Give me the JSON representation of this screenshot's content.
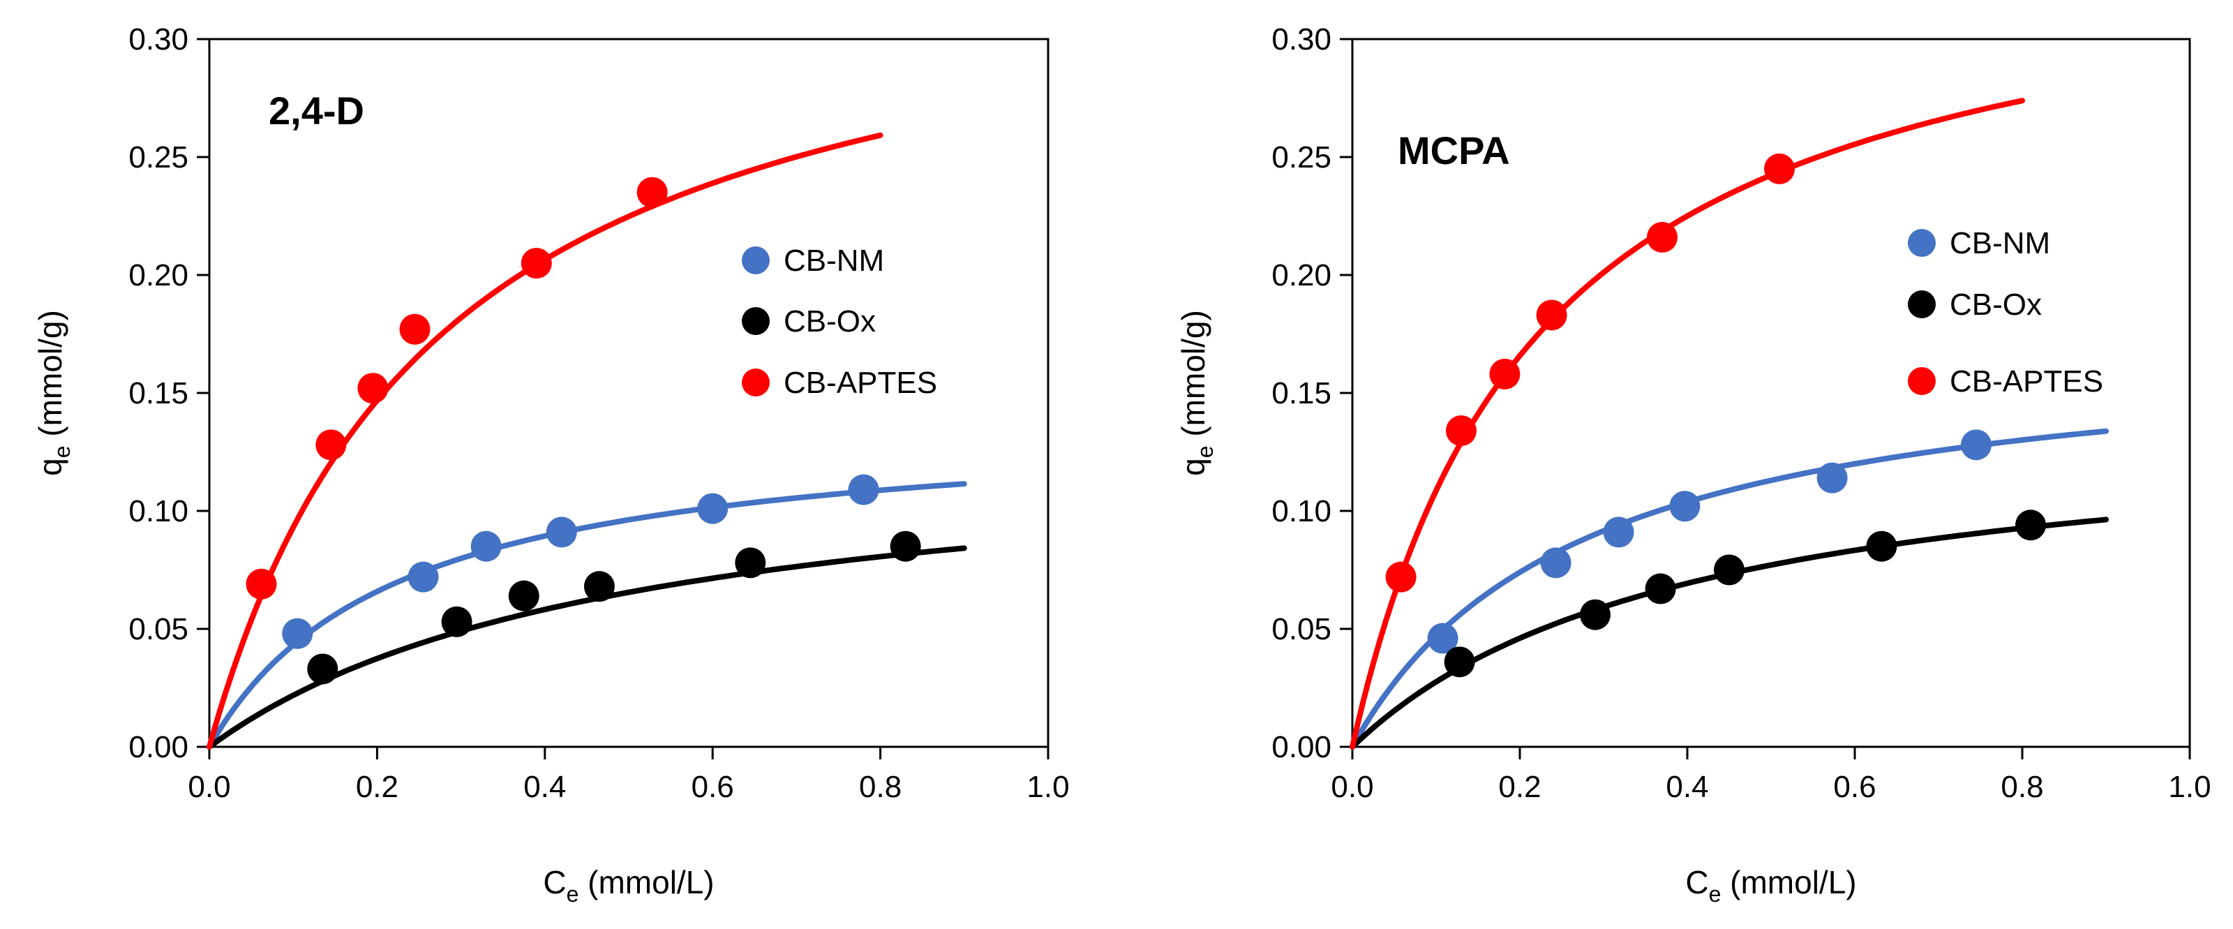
{
  "chart_data": [
    {
      "type": "scatter",
      "title": "2,4-D",
      "xlabel": "C",
      "xlabel_sub": "e",
      "xlabel_unit": " (mmol/L)",
      "ylabel": "q",
      "ylabel_sub": "e",
      "ylabel_unit": " (mmol/g)",
      "xlim": [
        0,
        1.0
      ],
      "ylim": [
        0,
        0.3
      ],
      "xticks": [
        "0.0",
        "0.2",
        "0.4",
        "0.6",
        "0.8",
        "1.0"
      ],
      "yticks": [
        "0.00",
        "0.05",
        "0.10",
        "0.15",
        "0.20",
        "0.25",
        "0.30"
      ],
      "legend_position": "right",
      "series": [
        {
          "name": "CB-NM",
          "color": "#4472C4",
          "x": [
            0.105,
            0.255,
            0.33,
            0.42,
            0.6,
            0.78
          ],
          "y": [
            0.048,
            0.072,
            0.085,
            0.091,
            0.101,
            0.109
          ],
          "fit": {
            "model": "langmuir",
            "qmax": 0.139,
            "K": 4.5,
            "xmax": 0.9
          }
        },
        {
          "name": "CB-Ox",
          "color": "#000000",
          "x": [
            0.135,
            0.295,
            0.375,
            0.465,
            0.645,
            0.83
          ],
          "y": [
            0.033,
            0.053,
            0.064,
            0.068,
            0.078,
            0.085
          ],
          "fit": {
            "model": "langmuir",
            "qmax": 0.131,
            "K": 2.0,
            "xmax": 0.9
          }
        },
        {
          "name": "CB-APTES",
          "color": "#FF0000",
          "x": [
            0.062,
            0.145,
            0.195,
            0.245,
            0.39,
            0.528
          ],
          "y": [
            0.069,
            0.128,
            0.152,
            0.177,
            0.205,
            0.235
          ],
          "fit": {
            "model": "langmuir",
            "qmax": 0.348,
            "K": 3.65,
            "xmax": 0.8
          }
        }
      ]
    },
    {
      "type": "scatter",
      "title": "MCPA",
      "xlabel": "C",
      "xlabel_sub": "e",
      "xlabel_unit": " (mmol/L)",
      "ylabel": "q",
      "ylabel_sub": "e",
      "ylabel_unit": " (mmol/g)",
      "xlim": [
        0,
        1.0
      ],
      "ylim": [
        0,
        0.3
      ],
      "xticks": [
        "0.0",
        "0.2",
        "0.4",
        "0.6",
        "0.8",
        "1.0"
      ],
      "yticks": [
        "0.00",
        "0.05",
        "0.10",
        "0.15",
        "0.20",
        "0.25",
        "0.30"
      ],
      "legend_position": "right",
      "series": [
        {
          "name": "CB-NM",
          "color": "#4472C4",
          "x": [
            0.108,
            0.243,
            0.318,
            0.397,
            0.573,
            0.745
          ],
          "y": [
            0.046,
            0.078,
            0.091,
            0.102,
            0.114,
            0.128
          ],
          "fit": {
            "model": "langmuir",
            "qmax": 0.174,
            "K": 3.7,
            "xmax": 0.9
          }
        },
        {
          "name": "CB-Ox",
          "color": "#000000",
          "x": [
            0.128,
            0.29,
            0.368,
            0.45,
            0.632,
            0.81
          ],
          "y": [
            0.036,
            0.056,
            0.067,
            0.075,
            0.085,
            0.094
          ],
          "fit": {
            "model": "langmuir",
            "qmax": 0.14,
            "K": 2.45,
            "xmax": 0.9
          }
        },
        {
          "name": "CB-APTES",
          "color": "#FF0000",
          "x": [
            0.058,
            0.13,
            0.182,
            0.238,
            0.37,
            0.51
          ],
          "y": [
            0.072,
            0.134,
            0.158,
            0.183,
            0.216,
            0.245
          ],
          "fit": {
            "model": "langmuir",
            "qmax": 0.35,
            "K": 4.5,
            "xmax": 0.8
          }
        }
      ]
    }
  ]
}
